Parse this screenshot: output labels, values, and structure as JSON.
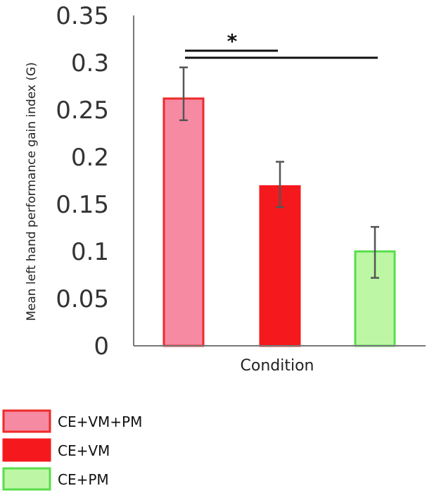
{
  "chart_data": {
    "type": "bar",
    "title": "",
    "xlabel": "Condition",
    "ylabel": "Mean left hand performance gain index (G)",
    "ylim": [
      0,
      0.35
    ],
    "yticks": [
      "0",
      "0.05",
      "0.1",
      "0.15",
      "0.2",
      "0.25",
      "0.3",
      "0.35"
    ],
    "categories": [
      "CE+VM+PM",
      "CE+VM",
      "CE+PM"
    ],
    "values": [
      0.262,
      0.169,
      0.1
    ],
    "error_low": [
      0.239,
      0.147,
      0.072
    ],
    "error_high": [
      0.295,
      0.195,
      0.126
    ],
    "colors": {
      "fill": [
        "#f78aa3",
        "#f5191d",
        "#bdf7a5"
      ],
      "stroke": [
        "#ee2a2a",
        "#f5191d",
        "#58dd4c"
      ]
    },
    "significance": {
      "label": "*",
      "brackets": [
        {
          "from": "CE+VM+PM",
          "to": "CE+VM"
        },
        {
          "from": "CE+VM+PM",
          "to": "CE+PM"
        }
      ]
    },
    "legend": {
      "position": "bottom-left",
      "entries": [
        "CE+VM+PM",
        "CE+VM",
        "CE+PM"
      ]
    }
  }
}
